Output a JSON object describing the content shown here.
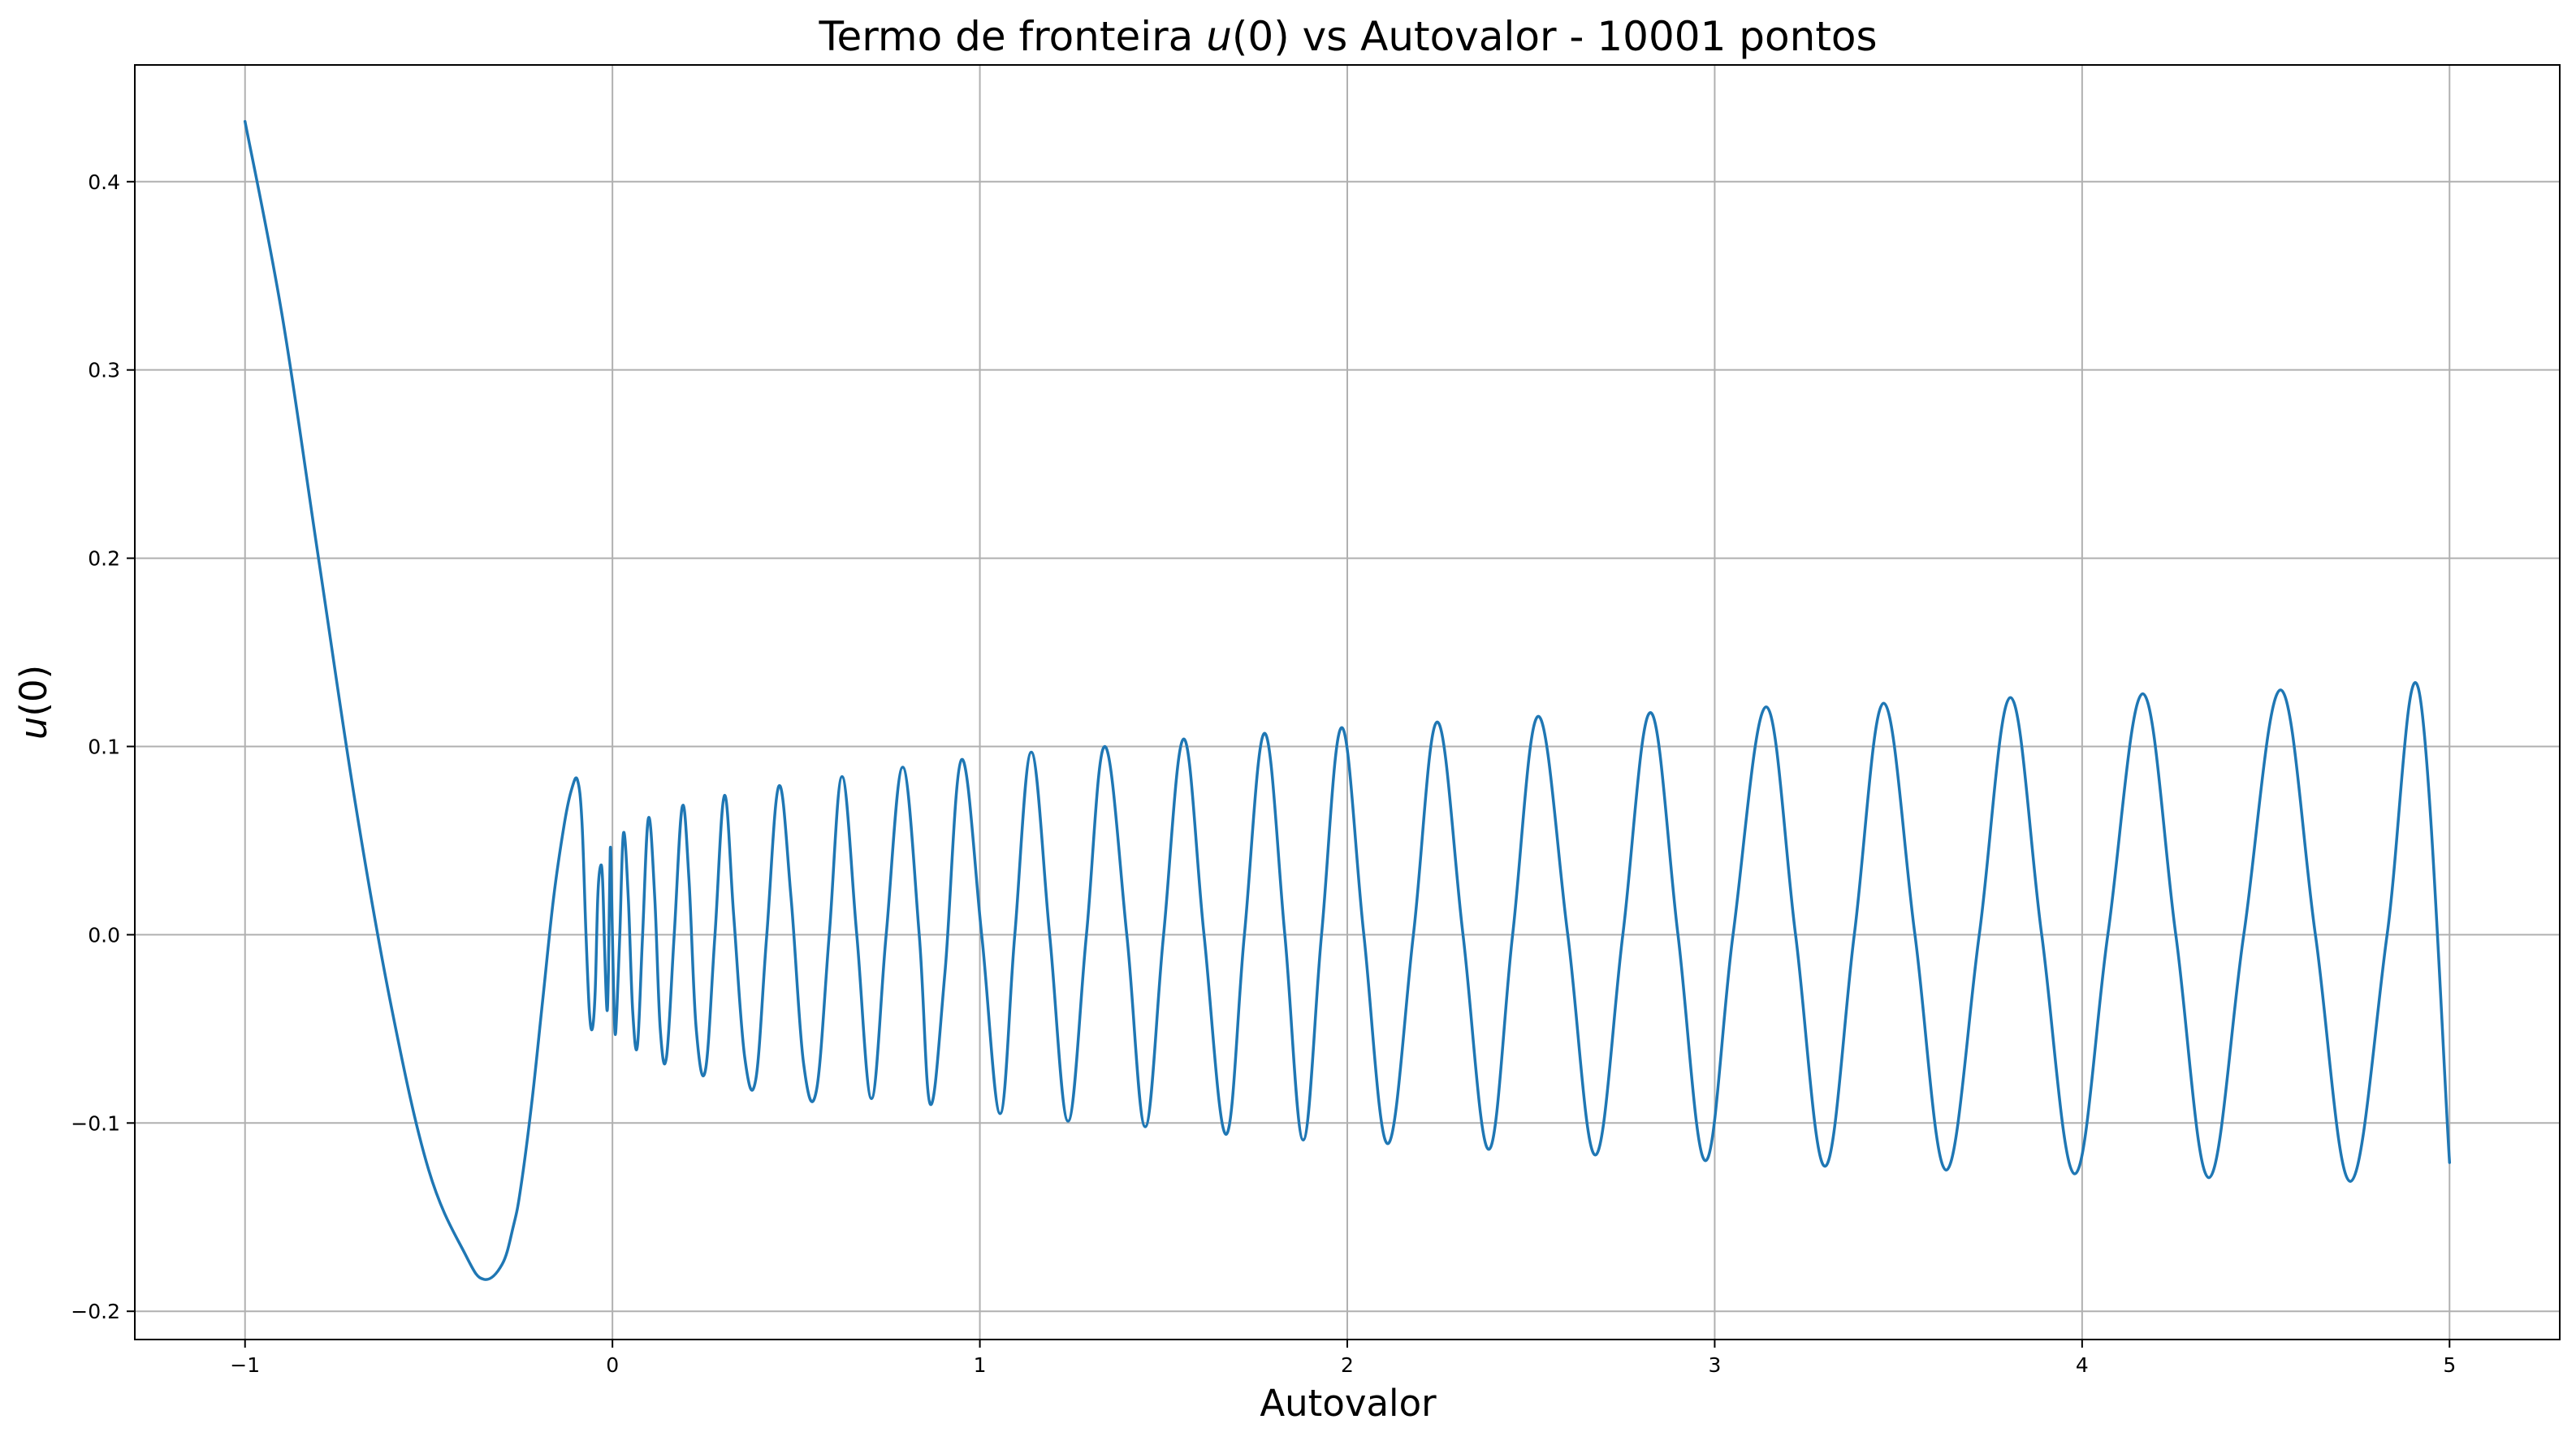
{
  "chart_data": {
    "type": "line",
    "title_prefix": "Termo de fronteira ",
    "title_var": "u",
    "title_arg": "(0)",
    "title_suffix": " vs Autovalor - 10001 pontos",
    "xlabel": "Autovalor",
    "ylabel_var": "u",
    "ylabel_arg": "(0)",
    "xlim": [
      -1.3,
      5.3
    ],
    "ylim": [
      -0.215,
      0.462
    ],
    "xticks": [
      -1,
      0,
      1,
      2,
      3,
      4,
      5
    ],
    "xtick_labels": [
      "−1",
      "0",
      "1",
      "2",
      "3",
      "4",
      "5"
    ],
    "yticks": [
      -0.2,
      -0.1,
      0.0,
      0.1,
      0.2,
      0.3,
      0.4
    ],
    "ytick_labels": [
      "−0.2",
      "−0.1",
      "0.0",
      "0.1",
      "0.2",
      "0.3",
      "0.4"
    ],
    "grid": true,
    "series_color": "#1f77b4",
    "series": [
      {
        "x": [
          -1,
          -0.9,
          -0.8,
          -0.7,
          -0.6,
          -0.5,
          -0.4,
          -0.35,
          -0.3,
          -0.27,
          -0.25,
          -0.22,
          -0.19,
          -0.16,
          -0.13,
          -0.11,
          -0.095,
          -0.083,
          -0.072,
          -0.063,
          -0.055,
          -0.047,
          -0.04,
          -0.033,
          -0.027,
          -0.021,
          -0.015,
          -0.011,
          -0.006,
          -0.002,
          0.002,
          0.007,
          0.012,
          0.02,
          0.03,
          0.043,
          0.055,
          0.068,
          0.082,
          0.098,
          0.115,
          0.13,
          0.147,
          0.168,
          0.19,
          0.208,
          0.228,
          0.253,
          0.279,
          0.305,
          0.33,
          0.36,
          0.39,
          0.42,
          0.453,
          0.486,
          0.52,
          0.555,
          0.59,
          0.625,
          0.665,
          0.705,
          0.745,
          0.79,
          0.835,
          0.865,
          0.905,
          0.95,
          1.005,
          1.055,
          1.095,
          1.14,
          1.19,
          1.24,
          1.29,
          1.34,
          1.4,
          1.45,
          1.5,
          1.555,
          1.61,
          1.67,
          1.72,
          1.775,
          1.83,
          1.88,
          1.93,
          1.985,
          2.045,
          2.11,
          2.18,
          2.245,
          2.315,
          2.385,
          2.45,
          2.52,
          2.6,
          2.675,
          2.75,
          2.825,
          2.9,
          2.975,
          3.05,
          3.14,
          3.22,
          3.3,
          3.38,
          3.46,
          3.545,
          3.63,
          3.72,
          3.805,
          3.89,
          3.98,
          4.07,
          4.165,
          4.255,
          4.345,
          4.44,
          4.54,
          4.635,
          4.73,
          4.83,
          4.915,
          5.0
        ],
        "y": [
          0.432,
          0.33,
          0.2,
          0.07,
          -0.04,
          -0.125,
          -0.17,
          -0.183,
          -0.175,
          -0.155,
          -0.135,
          -0.09,
          -0.035,
          0.02,
          0.06,
          0.078,
          0.082,
          0.06,
          0.0,
          -0.04,
          -0.05,
          -0.03,
          0.02,
          0.036,
          0.03,
          -0.01,
          -0.04,
          -0.02,
          0.045,
          0.02,
          -0.02,
          -0.052,
          -0.04,
          0.0,
          0.054,
          0.02,
          -0.04,
          -0.059,
          0.0,
          0.062,
          0.02,
          -0.05,
          -0.065,
          0.0,
          0.068,
          0.03,
          -0.05,
          -0.072,
          0.0,
          0.074,
          0.01,
          -0.065,
          -0.077,
          0.0,
          0.079,
          0.02,
          -0.068,
          -0.083,
          0.0,
          0.084,
          0.0,
          -0.087,
          0.0,
          0.089,
          0.0,
          -0.09,
          -0.02,
          0.093,
          0.0,
          -0.095,
          0.0,
          0.097,
          0.0,
          -0.099,
          0.0,
          0.1,
          0.0,
          -0.102,
          0.0,
          0.104,
          0.0,
          -0.106,
          0.0,
          0.107,
          0.0,
          -0.109,
          0.0,
          0.11,
          0.0,
          -0.111,
          0.0,
          0.113,
          0.0,
          -0.114,
          0.0,
          0.116,
          0.0,
          -0.117,
          0.0,
          0.118,
          0.0,
          -0.12,
          0.0,
          0.121,
          0.0,
          -0.123,
          0.0,
          0.123,
          0.0,
          -0.125,
          0.0,
          0.126,
          0.0,
          -0.127,
          0.0,
          0.128,
          0.0,
          -0.129,
          0.0,
          0.13,
          0.0,
          -0.131,
          0.0,
          0.131,
          -0.121
        ]
      }
    ]
  }
}
